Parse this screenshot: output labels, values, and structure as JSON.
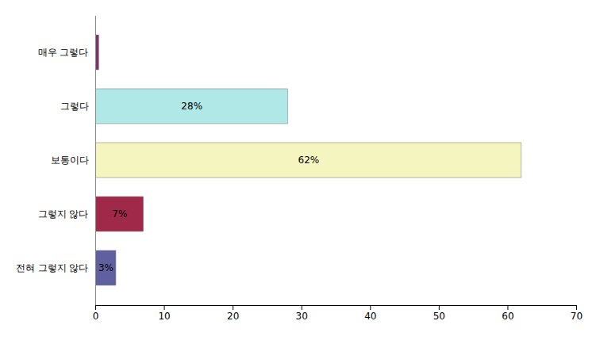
{
  "chart_data": {
    "type": "bar",
    "orientation": "horizontal",
    "categories": [
      "매우 그렇다",
      "그렇다",
      "보통이다",
      "그렇지 않다",
      "전혀 그렇지 않다"
    ],
    "values": [
      0.5,
      28,
      62,
      7,
      3
    ],
    "value_labels": [
      null,
      "28%",
      "62%",
      "7%",
      "3%"
    ],
    "data_labels": true,
    "colors": [
      "#7B3070",
      "#B0E8E8",
      "#F5F5C0",
      "#A0294A",
      "#6060A0"
    ],
    "xlim": [
      0,
      70
    ],
    "xticks": [
      0,
      10,
      20,
      30,
      40,
      50,
      60,
      70
    ],
    "grid": false
  }
}
